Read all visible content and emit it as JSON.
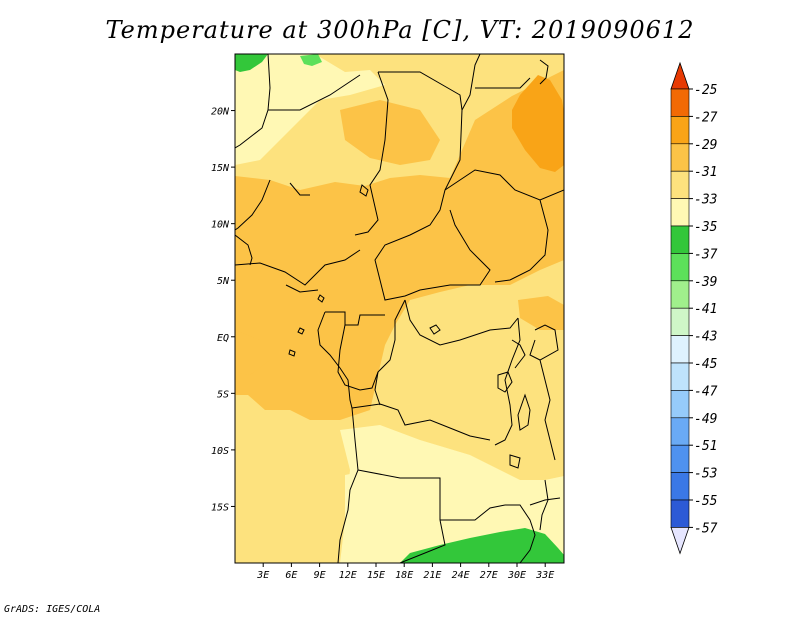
{
  "title": "Temperature at 300hPa [C], VT: 2019090612",
  "footer": "GrADS: IGES/COLA",
  "colors": {
    "level_colors": [
      "#e6e6ff",
      "#14006f",
      "#1e3cc8",
      "#2c5ad6",
      "#3a78e6",
      "#4f92f0",
      "#6aaaf5",
      "#96cbfa",
      "#bfe3fc",
      "#dff2fe",
      "#cff6c8",
      "#a0f08c",
      "#5ce05a",
      "#33c73a",
      "#fff8b4",
      "#fde27e",
      "#fcc347",
      "#f9a417",
      "#f26a05",
      "#e73a03"
    ]
  },
  "chart_data": {
    "type": "heatmap",
    "title": "Temperature at 300hPa [C], VT: 2019090612",
    "variable": "Temperature at 300hPa",
    "units": "C",
    "valid_time": "2019090612",
    "x_axis": {
      "range": [
        0,
        35
      ],
      "ticks": [
        3,
        6,
        9,
        12,
        15,
        18,
        21,
        24,
        27,
        30,
        33
      ],
      "tick_labels": [
        "3E",
        "6E",
        "9E",
        "12E",
        "15E",
        "18E",
        "21E",
        "24E",
        "27E",
        "30E",
        "33E"
      ]
    },
    "y_axis": {
      "range": [
        -20,
        25
      ],
      "ticks": [
        20,
        15,
        10,
        5,
        0,
        -5,
        -10,
        -15
      ],
      "tick_labels": [
        "20N",
        "15N",
        "10N",
        "5N",
        "EQ",
        "5S",
        "10S",
        "15S"
      ]
    },
    "colorbar": {
      "levels": [
        -25,
        -27,
        -29,
        -31,
        -33,
        -35,
        -37,
        -39,
        -41,
        -43,
        -45,
        -47,
        -49,
        -51,
        -53,
        -55,
        -57
      ],
      "labels": [
        "-25",
        "-27",
        "-29",
        "-31",
        "-33",
        "-35",
        "-37",
        "-39",
        "-41",
        "-43",
        "-45",
        "-47",
        "-49",
        "-51",
        "-53",
        "-55",
        "-57"
      ],
      "colors_top_to_bottom": [
        "#e73a03",
        "#f26a05",
        "#f9a417",
        "#fcc347",
        "#fde27e",
        "#fff8b4",
        "#33c73a",
        "#5ce05a",
        "#a0f08c",
        "#cff6c8",
        "#dff2fe",
        "#bfe3fc",
        "#96cbfa",
        "#6aaaf5",
        "#4f92f0",
        "#3a78e6",
        "#2c5ad6",
        "#1e3cc8",
        "#14006f",
        "#e6e6ff"
      ]
    },
    "field_regions": [
      {
        "name": "base",
        "range": "-33 to -31"
      },
      {
        "name": "central-warm-band",
        "range": "-31 to -29"
      },
      {
        "name": "northeast-warm",
        "range": "-29 to -27"
      },
      {
        "name": "northwest-cool",
        "range": "-35 to -33"
      },
      {
        "name": "southern-cool",
        "range": "-35 to -33"
      },
      {
        "name": "northwest-corner-green",
        "range": "-37 to -35"
      },
      {
        "name": "southeast-green",
        "range": "-37 to -35"
      }
    ]
  }
}
